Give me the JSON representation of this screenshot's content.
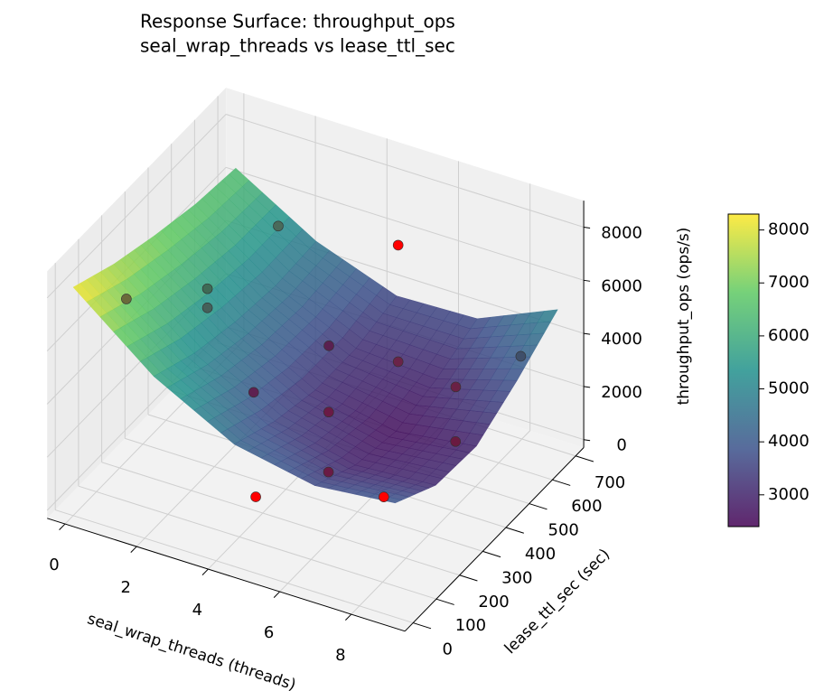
{
  "chart_data": {
    "type": "surface",
    "title": "Response Surface: throughput_ops",
    "subtitle": "seal_wrap_threads vs lease_ttl_sec",
    "xlabel": "seal_wrap_threads (threads)",
    "ylabel": "lease_ttl_sec (sec)",
    "zlabel": "throughput_ops (ops/s)",
    "colormap": "viridis",
    "xlim": [
      -0.5,
      9.5
    ],
    "xticks": [
      0,
      2,
      4,
      6,
      8
    ],
    "ylim": [
      -35,
      735
    ],
    "yticks": [
      0,
      100,
      200,
      300,
      400,
      500,
      600,
      700
    ],
    "zlim": [
      -300,
      9000
    ],
    "zticks": [
      0,
      2000,
      4000,
      6000,
      8000
    ],
    "clim": [
      2400,
      8300
    ],
    "colorbar_ticks": [
      3000,
      4000,
      5000,
      6000,
      7000,
      8000
    ],
    "grid": true,
    "surface": {
      "x": [
        0,
        2.25,
        4.5,
        6.75,
        9
      ],
      "y": [
        0,
        175,
        350,
        525,
        700
      ],
      "z": [
        [
          8300,
          5900,
          4300,
          3700,
          4000
        ],
        [
          7600,
          5200,
          3600,
          2900,
          3100
        ],
        [
          7100,
          4800,
          3200,
          2600,
          3000
        ],
        [
          6700,
          4600,
          3200,
          3000,
          3900
        ],
        [
          6500,
          4700,
          3600,
          3700,
          5000
        ]
      ]
    },
    "points": {
      "x": [
        6,
        4,
        8,
        2,
        1,
        2,
        2,
        4,
        6,
        3,
        5,
        8,
        8,
        9,
        6
      ],
      "y": [
        475,
        170,
        105,
        575,
        75,
        270,
        270,
        485,
        475,
        315,
        330,
        415,
        695,
        260,
        175
      ],
      "z": [
        8170,
        580,
        2860,
        6290,
        7610,
        6670,
        5950,
        3440,
        3780,
        2790,
        2760,
        4220,
        2860,
        3980,
        2320
      ],
      "colors": [
        "#ff0000",
        "#ff0000",
        "#ff0000",
        "#4a6a5a",
        "#6a6a3a",
        "#3f6a55",
        "#45605a",
        "#5a2050",
        "#6a2348",
        "#5e2050",
        "#6a1a45",
        "#6a2045",
        "#3f4f6a",
        "#6a1a40",
        "#6a1a45"
      ]
    }
  }
}
